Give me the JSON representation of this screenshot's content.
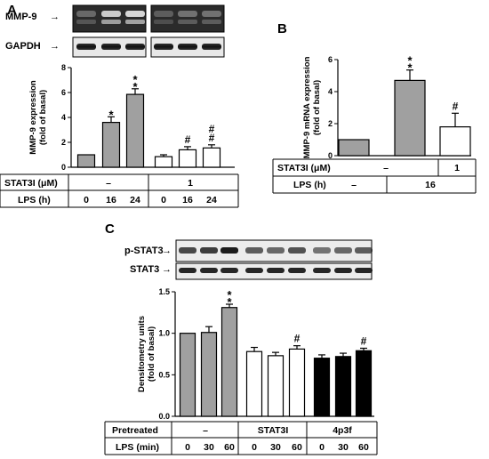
{
  "panels": {
    "A": {
      "letter": "A",
      "blot_labels": [
        "MMP-9",
        "GAPDH"
      ],
      "table": {
        "row1_label": "STAT3I (μM)",
        "row1_values": [
          "–",
          "1"
        ],
        "row2_label": "LPS (h)",
        "row2_values": [
          "0",
          "16",
          "24",
          "0",
          "16",
          "24"
        ]
      }
    },
    "B": {
      "letter": "B",
      "table": {
        "row1_label": "STAT3I (μM)",
        "row1_values": [
          "–",
          "1"
        ],
        "row2_label": "LPS (h)",
        "row2_values": [
          "–",
          "16"
        ]
      }
    },
    "C": {
      "letter": "C",
      "blot_labels": [
        "p-STAT3",
        "STAT3"
      ],
      "table": {
        "row1_label": "Pretreated",
        "row1_values": [
          "–",
          "STAT3I",
          "4p3f"
        ],
        "row2_label": "LPS (min)",
        "row2_values": [
          "0",
          "30",
          "60",
          "0",
          "30",
          "60",
          "0",
          "30",
          "60"
        ]
      }
    }
  },
  "colors": {
    "gray": "#a0a0a0",
    "white": "#ffffff",
    "black": "#000000"
  },
  "chart_data": [
    {
      "panel": "A",
      "type": "bar",
      "ylabel": "MMP-9 expression\n(fold of basal)",
      "ylim": [
        0,
        8
      ],
      "yticks": [
        0,
        2,
        4,
        6,
        8
      ],
      "categories": [
        "0",
        "16",
        "24",
        "0",
        "16",
        "24"
      ],
      "values": [
        1.0,
        3.6,
        5.85,
        0.85,
        1.4,
        1.55
      ],
      "errors": [
        0,
        0.45,
        0.45,
        0.15,
        0.25,
        0.25
      ],
      "fills": [
        "gray",
        "gray",
        "gray",
        "white",
        "white",
        "white"
      ],
      "annotations": [
        "",
        "*",
        "* *",
        "",
        "#",
        "# #"
      ]
    },
    {
      "panel": "B",
      "type": "bar",
      "ylabel": "MMP-9 mRNA expression\n(fold of basal)",
      "ylim": [
        0,
        6
      ],
      "yticks": [
        0,
        2,
        4,
        6
      ],
      "categories": [
        "–",
        "16",
        "16"
      ],
      "values": [
        1.0,
        4.7,
        1.8
      ],
      "errors": [
        0,
        0.65,
        0.85
      ],
      "fills": [
        "gray",
        "gray",
        "white"
      ],
      "annotations": [
        "",
        "* *",
        "#"
      ]
    },
    {
      "panel": "C",
      "type": "bar",
      "ylabel": "Densitometry units\n(fold of basal)",
      "ylim": [
        0.0,
        1.5
      ],
      "yticks": [
        0.0,
        0.5,
        1.0,
        1.5
      ],
      "categories": [
        "0",
        "30",
        "60",
        "0",
        "30",
        "60",
        "0",
        "30",
        "60"
      ],
      "values": [
        1.0,
        1.01,
        1.31,
        0.78,
        0.73,
        0.81,
        0.7,
        0.72,
        0.79
      ],
      "errors": [
        0,
        0.07,
        0.04,
        0.05,
        0.04,
        0.04,
        0.04,
        0.04,
        0.03
      ],
      "fills": [
        "gray",
        "gray",
        "gray",
        "white",
        "white",
        "white",
        "black",
        "black",
        "black"
      ],
      "annotations": [
        "",
        "",
        "* *",
        "",
        "",
        "#",
        "",
        "",
        "#"
      ]
    }
  ]
}
